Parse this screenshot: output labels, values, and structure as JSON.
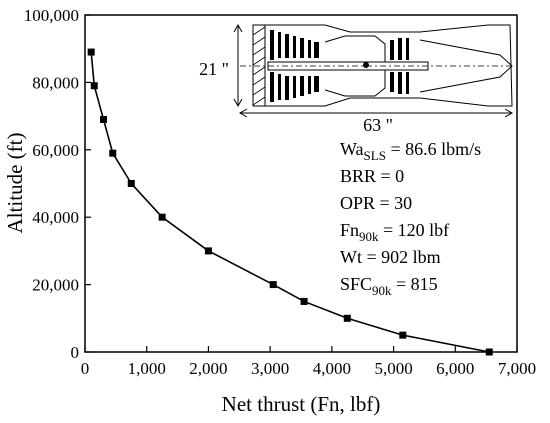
{
  "chart_data": {
    "type": "line",
    "xlabel": "Net thrust (Fn, lbf)",
    "ylabel": "Altitude (ft)",
    "xlim": [
      0,
      7000
    ],
    "ylim": [
      0,
      100000
    ],
    "x_ticks": [
      0,
      1000,
      2000,
      3000,
      4000,
      5000,
      6000,
      7000
    ],
    "x_tick_labels": [
      "0",
      "1,000",
      "2,000",
      "3,000",
      "4,000",
      "5,000",
      "6,000",
      "7,000"
    ],
    "y_ticks": [
      0,
      20000,
      40000,
      60000,
      80000,
      100000
    ],
    "y_tick_labels": [
      "0",
      "20,000",
      "40,000",
      "60,000",
      "80,000",
      "100,000"
    ],
    "grid": false,
    "series": [
      {
        "marker": "square",
        "color": "#000000",
        "x": [
          100,
          150,
          300,
          450,
          750,
          1250,
          2000,
          3050,
          3550,
          4250,
          5150,
          6550
        ],
        "y": [
          89000,
          79000,
          69000,
          59000,
          50000,
          40000,
          30000,
          20000,
          15000,
          10000,
          5000,
          0
        ]
      }
    ],
    "inset": {
      "dimension_height": "21 \"",
      "dimension_length": "63 \""
    },
    "annotations": [
      {
        "base": "Wa",
        "sub": "SLS",
        "rest": " = 86.6 lbm/s"
      },
      {
        "base": "BRR = 0",
        "sub": "",
        "rest": ""
      },
      {
        "base": "OPR = 30",
        "sub": "",
        "rest": ""
      },
      {
        "base": "Fn",
        "sub": "90k",
        "rest": " = 120 lbf"
      },
      {
        "base": "Wt = 902 lbm",
        "sub": "",
        "rest": ""
      },
      {
        "base": "SFC",
        "sub": "90k",
        "rest": " = 815"
      }
    ]
  }
}
